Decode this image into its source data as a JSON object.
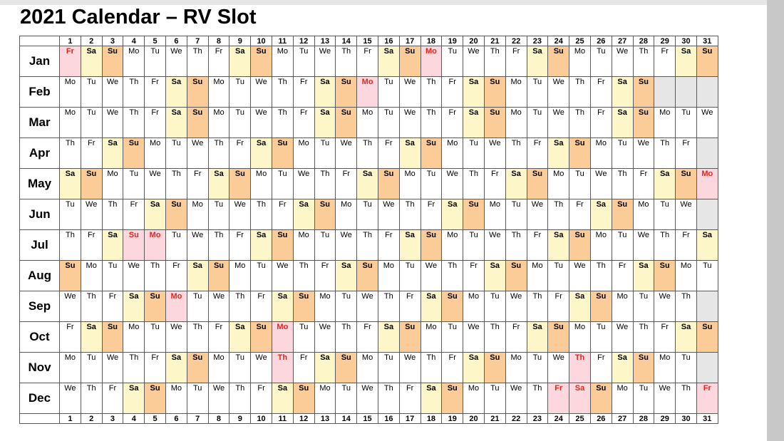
{
  "title": "2021 Calendar – RV Slot",
  "colors": {
    "saturday": "#fdf6c9",
    "sunday": "#fbcb98",
    "holiday_bg": "#fcd8de",
    "holiday_text": "#e0261f",
    "empty": "#e6e6e6"
  },
  "day_numbers": [
    "1",
    "2",
    "3",
    "4",
    "5",
    "6",
    "7",
    "8",
    "9",
    "10",
    "11",
    "12",
    "13",
    "14",
    "15",
    "16",
    "17",
    "18",
    "19",
    "20",
    "21",
    "22",
    "23",
    "24",
    "25",
    "26",
    "27",
    "28",
    "29",
    "30",
    "31"
  ],
  "months": [
    {
      "label": "Jan",
      "start": 5,
      "days": 31,
      "holidays": [
        1,
        18
      ]
    },
    {
      "label": "Feb",
      "start": 1,
      "days": 28,
      "holidays": [
        15
      ]
    },
    {
      "label": "Mar",
      "start": 1,
      "days": 31,
      "holidays": []
    },
    {
      "label": "Apr",
      "start": 4,
      "days": 30,
      "holidays": []
    },
    {
      "label": "May",
      "start": 6,
      "days": 31,
      "holidays": [
        31
      ]
    },
    {
      "label": "Jun",
      "start": 2,
      "days": 30,
      "holidays": []
    },
    {
      "label": "Jul",
      "start": 4,
      "days": 31,
      "holidays": [
        4,
        5
      ]
    },
    {
      "label": "Aug",
      "start": 0,
      "days": 31,
      "holidays": []
    },
    {
      "label": "Sep",
      "start": 3,
      "days": 30,
      "holidays": [
        6
      ]
    },
    {
      "label": "Oct",
      "start": 5,
      "days": 31,
      "holidays": [
        11
      ]
    },
    {
      "label": "Nov",
      "start": 1,
      "days": 30,
      "holidays": [
        11,
        25
      ]
    },
    {
      "label": "Dec",
      "start": 3,
      "days": 31,
      "holidays": [
        24,
        25,
        31
      ]
    }
  ],
  "weekday_abbr": [
    "Su",
    "Mo",
    "Tu",
    "We",
    "Th",
    "Fr",
    "Sa"
  ]
}
